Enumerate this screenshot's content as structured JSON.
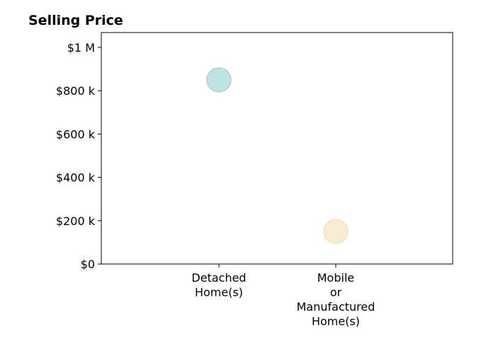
{
  "chart_data": {
    "type": "scatter",
    "title": "Selling Price",
    "xlabel": "",
    "ylabel": "",
    "categories": [
      [
        "Detached",
        "Home(s)"
      ],
      [
        "Mobile",
        "or",
        "Manufactured",
        "Home(s)"
      ]
    ],
    "values": [
      850000,
      150000
    ],
    "point_colors": [
      "#a8dad5",
      "#f7e6c4"
    ],
    "point_stroke_colors": [
      "#8fcac4",
      "#efd8ae"
    ],
    "ylim": [
      0,
      1000000
    ],
    "y_ticks": [
      {
        "value": 0,
        "label": "$0"
      },
      {
        "value": 200000,
        "label": "$200 k"
      },
      {
        "value": 400000,
        "label": "$400 k"
      },
      {
        "value": 600000,
        "label": "$600 k"
      },
      {
        "value": 800000,
        "label": "$800 k"
      },
      {
        "value": 1000000,
        "label": "$1 M"
      }
    ],
    "grid": false,
    "legend": "none"
  }
}
